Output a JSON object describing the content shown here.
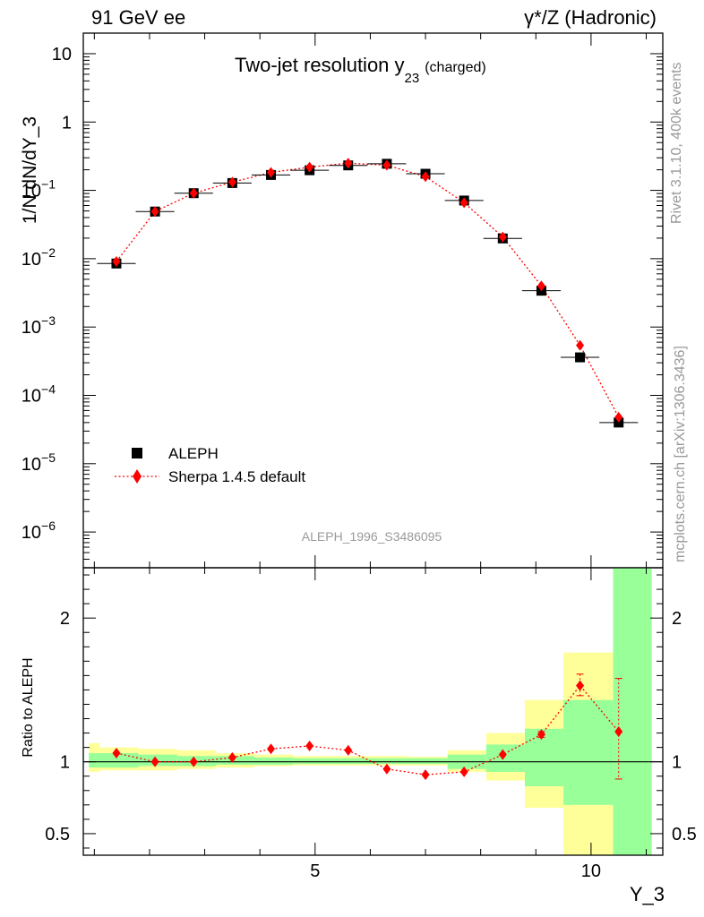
{
  "header": {
    "left": "91 GeV ee",
    "right": "γ*/Z (Hadronic)"
  },
  "side_labels": {
    "rivet": "Rivet 3.1.10,  400k events",
    "mcplots": "mcplots.cern.ch [arXiv:1306.3436]"
  },
  "chart_data": [
    {
      "type": "scatter",
      "panel": "main",
      "title_main": "Two-jet resolution y",
      "title_sub": "23",
      "title_note": "(charged)",
      "analysis_id": "ALEPH_1996_S3486095",
      "xlabel": "Y_3",
      "ylabel": "1/N dN/dY_3",
      "yscale": "log",
      "xlim": [
        0.8,
        11.3
      ],
      "ylim": [
        3e-07,
        20
      ],
      "x": [
        1.4,
        2.1,
        2.8,
        3.5,
        4.2,
        4.9,
        5.6,
        6.3,
        7.0,
        7.7,
        8.4,
        9.1,
        9.8,
        10.5
      ],
      "xerr": 0.35,
      "yticks": [
        {
          "v": 10,
          "label": "10"
        },
        {
          "v": 1,
          "label": "1"
        },
        {
          "v": 0.1,
          "base": "10",
          "exp": "−1"
        },
        {
          "v": 0.01,
          "base": "10",
          "exp": "−2"
        },
        {
          "v": 0.001,
          "base": "10",
          "exp": "−3"
        },
        {
          "v": 0.0001,
          "base": "10",
          "exp": "−4"
        },
        {
          "v": 1e-05,
          "base": "10",
          "exp": "−5"
        },
        {
          "v": 1e-06,
          "base": "10",
          "exp": "−6"
        }
      ],
      "series": [
        {
          "name": "ALEPH",
          "marker": "square",
          "color": "#000000",
          "values": [
            0.0085,
            0.049,
            0.091,
            0.128,
            0.168,
            0.197,
            0.232,
            0.245,
            0.175,
            0.071,
            0.0198,
            0.0034,
            0.00036,
            4e-05
          ]
        },
        {
          "name": "Sherpa 1.4.5 default",
          "marker": "diamond",
          "color": "#ff0000",
          "line": "dotted",
          "values": [
            0.0091,
            0.049,
            0.091,
            0.132,
            0.183,
            0.219,
            0.25,
            0.233,
            0.159,
            0.066,
            0.0208,
            0.004,
            0.00054,
            4.8e-05
          ]
        }
      ]
    },
    {
      "type": "scatter",
      "panel": "ratio",
      "ylabel": "Ratio to ALEPH",
      "xlabel": "Y_3",
      "xlim": [
        0.8,
        11.3
      ],
      "ylim": [
        0.35,
        2.35
      ],
      "xticks": [
        {
          "v": 5,
          "label": "5"
        },
        {
          "v": 10,
          "label": "10"
        }
      ],
      "yticks": [
        {
          "v": 0.5,
          "label": "0.5"
        },
        {
          "v": 1,
          "label": "1"
        },
        {
          "v": 2,
          "label": "2"
        }
      ],
      "bin_edges": [
        0.9,
        1.1,
        1.8,
        2.5,
        3.2,
        3.9,
        4.6,
        5.3,
        6.0,
        6.7,
        7.4,
        8.1,
        8.8,
        9.5,
        10.4,
        11.1
      ],
      "bands_green": [
        [
          0.96,
          1.06
        ],
        [
          0.96,
          1.06
        ],
        [
          0.97,
          1.05
        ],
        [
          0.97,
          1.04
        ],
        [
          0.98,
          1.04
        ],
        [
          0.98,
          1.03
        ],
        [
          0.985,
          1.025
        ],
        [
          0.985,
          1.025
        ],
        [
          0.985,
          1.025
        ],
        [
          0.985,
          1.025
        ],
        [
          0.95,
          1.05
        ],
        [
          0.93,
          1.12
        ],
        [
          0.83,
          1.23
        ],
        [
          0.7,
          1.43
        ],
        [
          0.35,
          2.35
        ]
      ],
      "bands_yellow": [
        [
          0.93,
          1.13
        ],
        [
          0.94,
          1.1
        ],
        [
          0.94,
          1.09
        ],
        [
          0.95,
          1.08
        ],
        [
          0.96,
          1.06
        ],
        [
          0.97,
          1.05
        ],
        [
          0.975,
          1.04
        ],
        [
          0.975,
          1.04
        ],
        [
          0.975,
          1.04
        ],
        [
          0.975,
          1.035
        ],
        [
          0.93,
          1.08
        ],
        [
          0.87,
          1.2
        ],
        [
          0.68,
          1.43
        ],
        [
          0.35,
          1.76
        ],
        [
          0.35,
          2.35
        ]
      ],
      "series": [
        {
          "name": "Sherpa 1.4.5 default",
          "color": "#ff0000",
          "values": [
            1.06,
            1.0,
            1.0,
            1.03,
            1.09,
            1.11,
            1.08,
            0.95,
            0.91,
            0.93,
            1.05,
            1.19,
            1.53,
            1.21
          ],
          "err_lo": [
            0.0,
            0.0,
            0.0,
            0.0,
            0.0,
            0.0,
            0.0,
            0.0,
            0.0,
            0.0,
            0.0,
            0.02,
            0.07,
            0.33
          ],
          "err_hi": [
            0.0,
            0.0,
            0.0,
            0.0,
            0.0,
            0.0,
            0.0,
            0.0,
            0.0,
            0.0,
            0.0,
            0.02,
            0.08,
            0.37
          ]
        }
      ]
    }
  ]
}
